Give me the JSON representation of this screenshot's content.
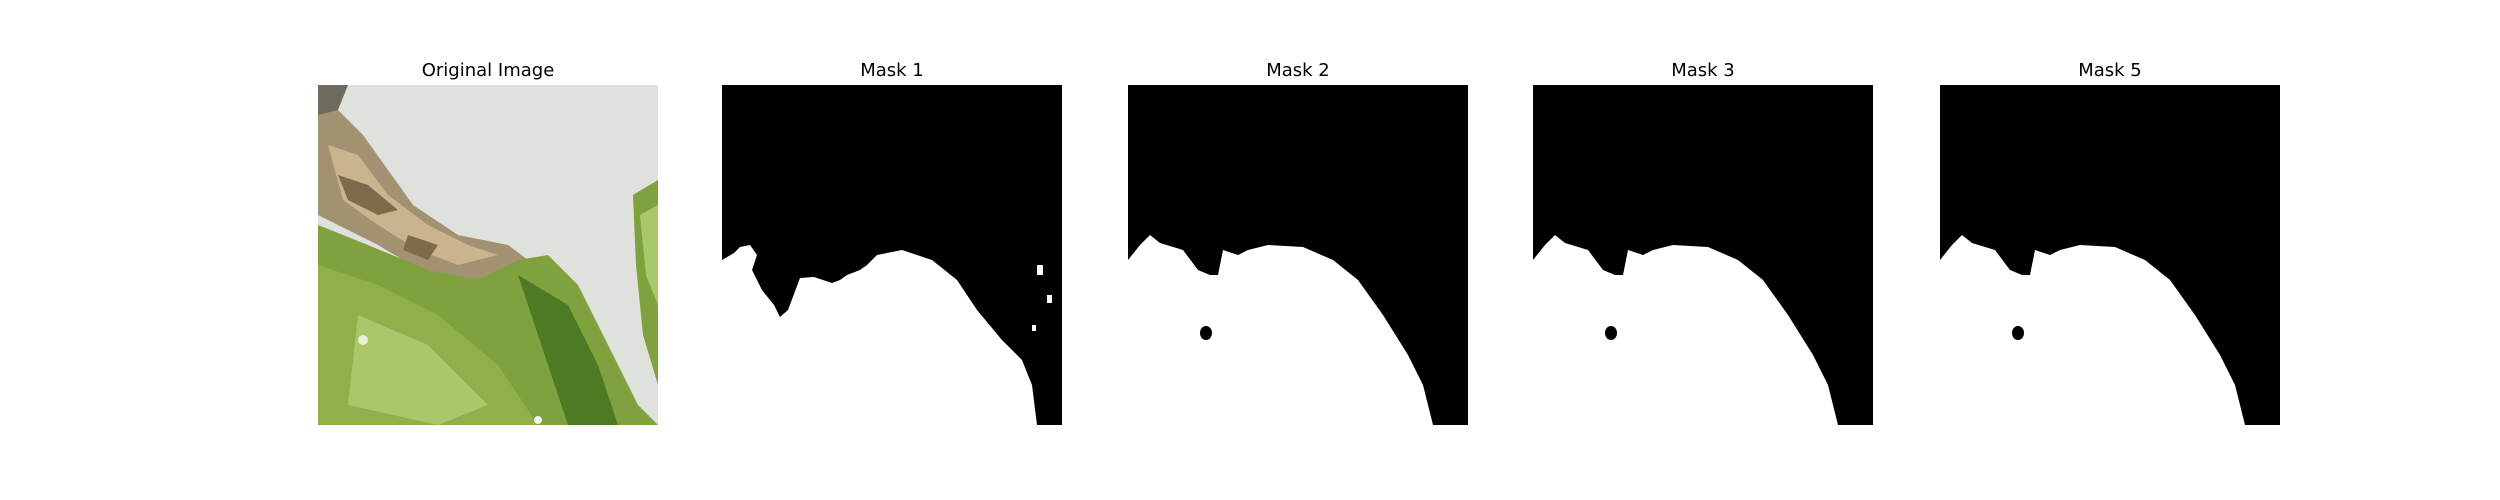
{
  "figure": {
    "panels": [
      {
        "title": "Original Image",
        "kind": "photo"
      },
      {
        "title": "Mask 1",
        "kind": "mask"
      },
      {
        "title": "Mask 2",
        "kind": "mask"
      },
      {
        "title": "Mask 3",
        "kind": "mask"
      },
      {
        "title": "Mask 5",
        "kind": "mask"
      }
    ]
  },
  "colors": {
    "mask_background": "#000000",
    "mask_foreground": "#ffffff",
    "photo_background": "#dfe1dc",
    "leaf_green": "#7fa23e",
    "leaf_dark": "#4e7a24",
    "leaf_light": "#a9c86a",
    "lesion": "#c8b48d",
    "lesion_dark": "#7d6b4c"
  }
}
